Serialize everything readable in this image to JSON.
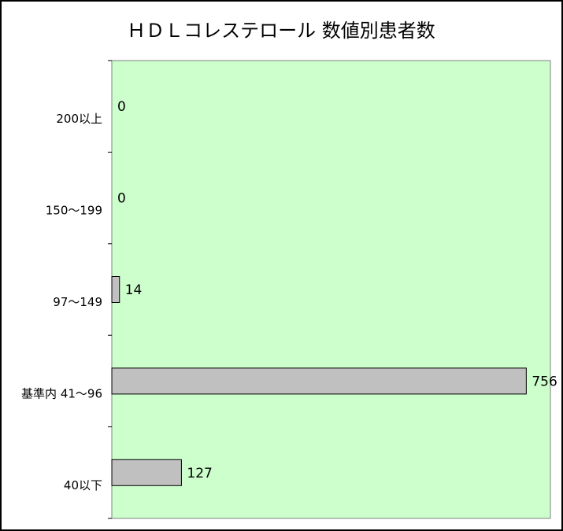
{
  "chart_data": {
    "type": "bar",
    "orientation": "horizontal",
    "title": "ＨＤＬコレステロール 数値別患者数",
    "categories": [
      "200以上",
      "150～199",
      "97～149",
      "基準内 41～96",
      "40以下"
    ],
    "values": [
      0,
      0,
      14,
      756,
      127
    ],
    "xlim": [
      0,
      800
    ],
    "grid": false,
    "legend": "none"
  },
  "colors": {
    "plot_background": "#ccffcc",
    "bar_fill": "#c0c0c0",
    "bar_stroke": "#000000",
    "frame": "#000000"
  }
}
